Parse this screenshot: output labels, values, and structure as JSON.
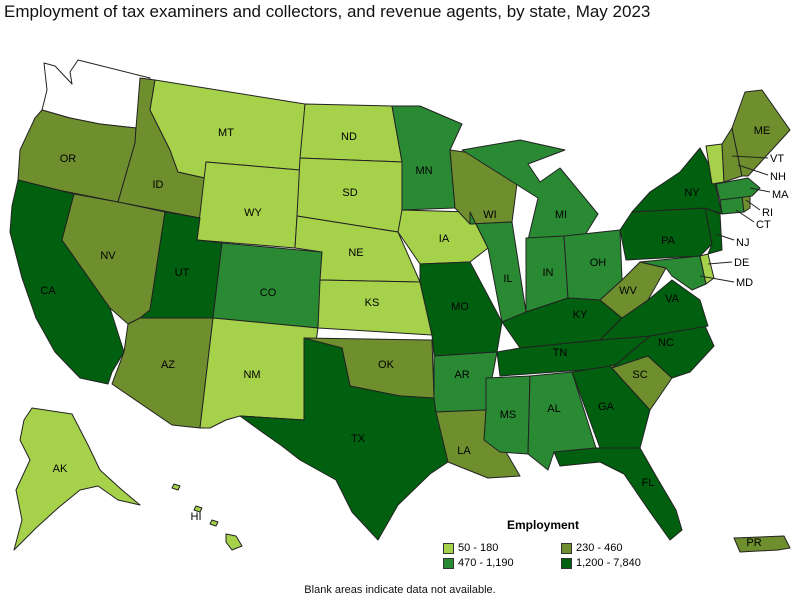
{
  "title": "Employment of tax examiners and collectors, and revenue agents, by state, May 2023",
  "legend": {
    "title": "Employment",
    "classes": [
      {
        "id": "c1",
        "label": "50 - 180",
        "color": "#a6d14b"
      },
      {
        "id": "c2",
        "label": "230 - 460",
        "color": "#6f8f2e"
      },
      {
        "id": "c3",
        "label": "470 - 1,190",
        "color": "#2a8a34"
      },
      {
        "id": "c4",
        "label": "1,200 - 7,840",
        "color": "#00600f"
      }
    ]
  },
  "no_data_color": "#ffffff",
  "note": "Blank areas indicate data not available.",
  "states": {
    "WA": {
      "label": "",
      "class": "none"
    },
    "OR": {
      "label": "OR",
      "class": "c2"
    },
    "CA": {
      "label": "CA",
      "class": "c4"
    },
    "ID": {
      "label": "ID",
      "class": "c2"
    },
    "NV": {
      "label": "NV",
      "class": "c2"
    },
    "MT": {
      "label": "MT",
      "class": "c1"
    },
    "WY": {
      "label": "WY",
      "class": "c1"
    },
    "UT": {
      "label": "UT",
      "class": "c4"
    },
    "AZ": {
      "label": "AZ",
      "class": "c2"
    },
    "CO": {
      "label": "CO",
      "class": "c3"
    },
    "NM": {
      "label": "NM",
      "class": "c1"
    },
    "ND": {
      "label": "ND",
      "class": "c1"
    },
    "SD": {
      "label": "SD",
      "class": "c1"
    },
    "NE": {
      "label": "NE",
      "class": "c1"
    },
    "KS": {
      "label": "KS",
      "class": "c1"
    },
    "OK": {
      "label": "OK",
      "class": "c2"
    },
    "TX": {
      "label": "TX",
      "class": "c4"
    },
    "MN": {
      "label": "MN",
      "class": "c3"
    },
    "IA": {
      "label": "IA",
      "class": "c1"
    },
    "MO": {
      "label": "MO",
      "class": "c4"
    },
    "AR": {
      "label": "AR",
      "class": "c3"
    },
    "LA": {
      "label": "LA",
      "class": "c2"
    },
    "WI": {
      "label": "WI",
      "class": "c2"
    },
    "IL": {
      "label": "IL",
      "class": "c3"
    },
    "MI": {
      "label": "MI",
      "class": "c3"
    },
    "IN": {
      "label": "IN",
      "class": "c3"
    },
    "OH": {
      "label": "OH",
      "class": "c3"
    },
    "KY": {
      "label": "KY",
      "class": "c4"
    },
    "TN": {
      "label": "TN",
      "class": "c4"
    },
    "MS": {
      "label": "MS",
      "class": "c3"
    },
    "AL": {
      "label": "AL",
      "class": "c3"
    },
    "GA": {
      "label": "GA",
      "class": "c4"
    },
    "FL": {
      "label": "FL",
      "class": "c4"
    },
    "SC": {
      "label": "SC",
      "class": "c2"
    },
    "NC": {
      "label": "NC",
      "class": "c4"
    },
    "VA": {
      "label": "VA",
      "class": "c4"
    },
    "WV": {
      "label": "WV",
      "class": "c2"
    },
    "PA": {
      "label": "PA",
      "class": "c4"
    },
    "NY": {
      "label": "NY",
      "class": "c4"
    },
    "VT": {
      "label": "VT",
      "class": "c1"
    },
    "NH": {
      "label": "NH",
      "class": "c2"
    },
    "ME": {
      "label": "ME",
      "class": "c2"
    },
    "MA": {
      "label": "MA",
      "class": "c3"
    },
    "RI": {
      "label": "RI",
      "class": "c2"
    },
    "CT": {
      "label": "CT",
      "class": "c3"
    },
    "NJ": {
      "label": "NJ",
      "class": "c4"
    },
    "DE": {
      "label": "DE",
      "class": "c1"
    },
    "MD": {
      "label": "MD",
      "class": "c3"
    },
    "AK": {
      "label": "AK",
      "class": "c1"
    },
    "HI": {
      "label": "HI",
      "class": "c1"
    },
    "PR": {
      "label": "PR",
      "class": "c2"
    }
  }
}
